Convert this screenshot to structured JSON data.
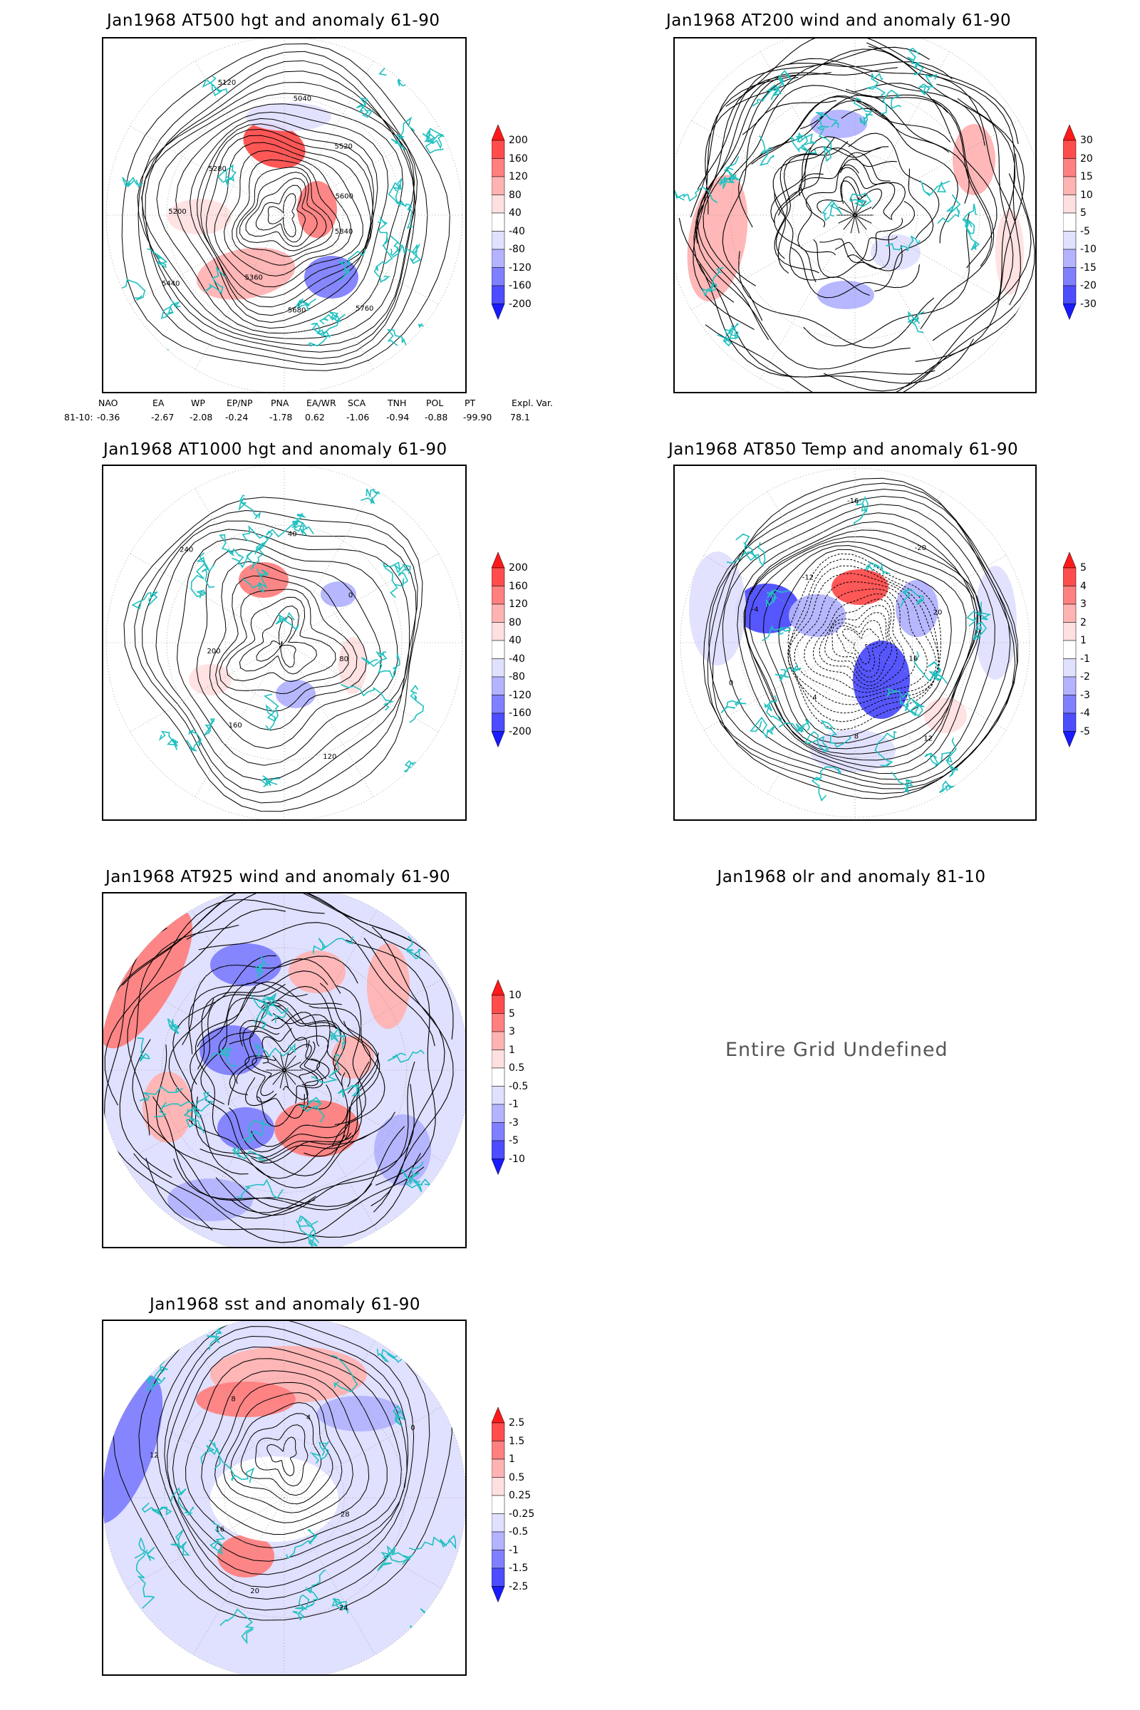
{
  "panels": [
    {
      "id": "p500",
      "title": "Jan1968 AT500 hgt and anomaly 61-90",
      "colorbar": [
        "200",
        "160",
        "120",
        "80",
        "40",
        "-40",
        "-80",
        "-120",
        "-160",
        "-200"
      ],
      "contour_labels": [
        "5840",
        "5760",
        "5680",
        "5360",
        "5440",
        "5200",
        "5280",
        "5120",
        "5040",
        "5520",
        "5600"
      ]
    },
    {
      "id": "p200",
      "title": "Jan1968 AT200 wind and anomaly 61-90",
      "colorbar": [
        "30",
        "20",
        "15",
        "10",
        "5",
        "-5",
        "-10",
        "-15",
        "-20",
        "-30"
      ]
    },
    {
      "id": "p1000",
      "title": "Jan1968 AT1000 hgt and anomaly 61-90",
      "colorbar": [
        "200",
        "160",
        "120",
        "80",
        "40",
        "-40",
        "-80",
        "-120",
        "-160",
        "-200"
      ],
      "contour_labels": [
        "80",
        "120",
        "160",
        "200",
        "240",
        "40",
        "0"
      ]
    },
    {
      "id": "p850",
      "title": "Jan1968 AT850 Temp and anomaly 61-90",
      "colorbar": [
        "5",
        "4",
        "3",
        "2",
        "1",
        "-1",
        "-2",
        "-3",
        "-4",
        "-5"
      ],
      "contour_labels": [
        "16",
        "12",
        "8",
        "4",
        "0",
        "-4",
        "-12",
        "-16",
        "-20",
        "20"
      ]
    },
    {
      "id": "p925",
      "title": "Jan1968 AT925 wind and anomaly 61-90",
      "colorbar": [
        "10",
        "5",
        "3",
        "1",
        "0.5",
        "-0.5",
        "-1",
        "-3",
        "-5",
        "-10"
      ]
    },
    {
      "id": "polr",
      "title": "Jan1968 olr and anomaly 81-10",
      "undefined_text": "Entire Grid Undefined"
    },
    {
      "id": "psst",
      "title": "Jan1968 sst and anomaly 61-90",
      "colorbar": [
        "2.5",
        "1.5",
        "1",
        "0.5",
        "0.25",
        "-0.25",
        "-0.5",
        "-1",
        "-1.5",
        "-2.5"
      ],
      "contour_labels": [
        "28",
        "24",
        "20",
        "16",
        "12",
        "8",
        "4",
        "0"
      ]
    }
  ],
  "index_table": {
    "headers": [
      "NAO",
      "EA",
      "WP",
      "EP/NP",
      "PNA",
      "EA/WR",
      "SCA",
      "TNH",
      "POL",
      "PT",
      "Expl. Var."
    ],
    "row_label": "81-10:",
    "values": [
      "-0.36",
      "-2.67",
      "-2.08",
      "-0.24",
      "-1.78",
      "0.62",
      "-1.06",
      "-0.94",
      "-0.88",
      "-99.90",
      "78.1"
    ]
  },
  "colors": {
    "coastline": "#20c0c0",
    "contour": "#000000",
    "reds": [
      "#ff1a1a",
      "#ff4d4d",
      "#ff8080",
      "#ffb3b3",
      "#ffe0e0"
    ],
    "blues": [
      "#e0e0ff",
      "#b3b3ff",
      "#8080ff",
      "#4d4dff",
      "#1a1aff"
    ]
  }
}
